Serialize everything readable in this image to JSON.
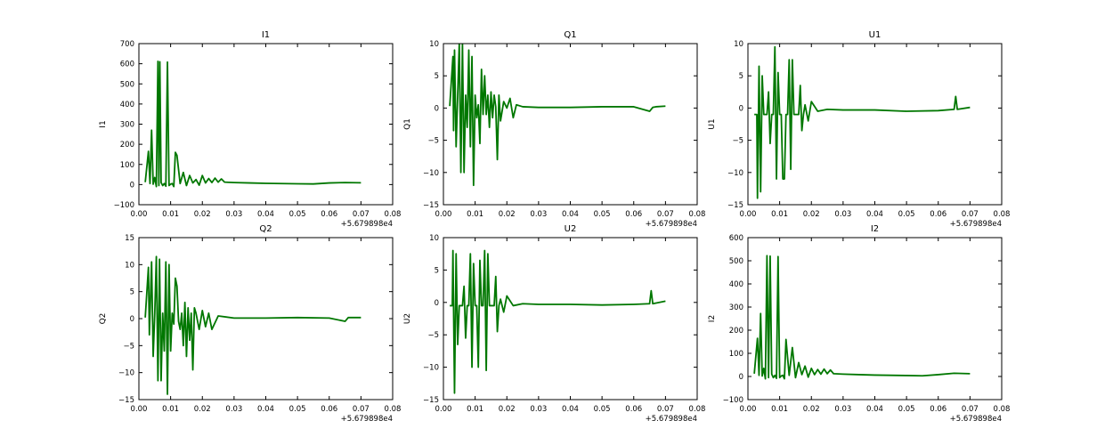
{
  "line_color": "#007700",
  "x_offset_text": "+5.679898e4",
  "chart_data": [
    {
      "type": "line",
      "title": "I1",
      "ylabel": "I1",
      "xlim": [
        0.0,
        0.08
      ],
      "ylim": [
        -100,
        700
      ],
      "xticks": [
        "0.00",
        "0.01",
        "0.02",
        "0.03",
        "0.04",
        "0.05",
        "0.06",
        "0.07",
        "0.08"
      ],
      "yticks": [
        "−100",
        "0",
        "100",
        "200",
        "300",
        "400",
        "500",
        "600",
        "700"
      ],
      "series": [
        {
          "x": [
            0.002,
            0.003,
            0.0035,
            0.004,
            0.0045,
            0.005,
            0.0055,
            0.006,
            0.0063,
            0.0066,
            0.007,
            0.0075,
            0.008,
            0.0085,
            0.009,
            0.0095,
            0.01,
            0.0105,
            0.011,
            0.0115,
            0.012,
            0.013,
            0.014,
            0.015,
            0.016,
            0.017,
            0.018,
            0.019,
            0.02,
            0.021,
            0.022,
            0.023,
            0.024,
            0.025,
            0.026,
            0.027,
            0.03,
            0.035,
            0.04,
            0.045,
            0.05,
            0.055,
            0.06,
            0.065,
            0.07
          ],
          "y": [
            12,
            165,
            5,
            270,
            2,
            35,
            -10,
            612,
            -5,
            610,
            10,
            -5,
            5,
            -8,
            608,
            -5,
            2,
            5,
            -10,
            160,
            145,
            5,
            60,
            -5,
            45,
            8,
            25,
            -3,
            45,
            8,
            30,
            10,
            32,
            12,
            28,
            12,
            10,
            8,
            6,
            5,
            4,
            3,
            8,
            10,
            9
          ]
        }
      ]
    },
    {
      "type": "line",
      "title": "Q1",
      "ylabel": "Q1",
      "xlim": [
        0.0,
        0.08
      ],
      "ylim": [
        -15,
        10
      ],
      "xticks": [
        "0.00",
        "0.01",
        "0.02",
        "0.03",
        "0.04",
        "0.05",
        "0.06",
        "0.07",
        "0.08"
      ],
      "yticks": [
        "−15",
        "−10",
        "−5",
        "0",
        "5",
        "10"
      ],
      "series": [
        {
          "x": [
            0.002,
            0.003,
            0.0032,
            0.0035,
            0.004,
            0.0045,
            0.005,
            0.0055,
            0.006,
            0.0065,
            0.007,
            0.0075,
            0.008,
            0.0085,
            0.009,
            0.0095,
            0.01,
            0.0105,
            0.011,
            0.0115,
            0.012,
            0.0125,
            0.013,
            0.0135,
            0.014,
            0.0145,
            0.015,
            0.0155,
            0.016,
            0.0165,
            0.017,
            0.0175,
            0.018,
            0.019,
            0.02,
            0.021,
            0.022,
            0.023,
            0.025,
            0.03,
            0.04,
            0.05,
            0.06,
            0.065,
            0.066,
            0.067,
            0.07
          ],
          "y": [
            0.3,
            8,
            -3.5,
            9,
            -6,
            2,
            10,
            -10,
            10,
            -10,
            2,
            -3,
            9,
            -6,
            8,
            -12,
            2,
            -1.5,
            0.5,
            -5.5,
            6,
            -1,
            5,
            -1,
            2,
            -3,
            2.5,
            -1.5,
            2,
            0.2,
            -8,
            2,
            -2,
            1,
            0,
            1.5,
            -1.5,
            0.5,
            0.2,
            0.1,
            0.1,
            0.2,
            0.2,
            -0.5,
            0.1,
            0.2,
            0.3
          ]
        }
      ]
    },
    {
      "type": "line",
      "title": "U1",
      "ylabel": "U1",
      "xlim": [
        0.0,
        0.08
      ],
      "ylim": [
        -15,
        10
      ],
      "xticks": [
        "0.00",
        "0.01",
        "0.02",
        "0.03",
        "0.04",
        "0.05",
        "0.06",
        "0.07",
        "0.08"
      ],
      "yticks": [
        "−15",
        "−10",
        "−5",
        "0",
        "5",
        "10"
      ],
      "series": [
        {
          "x": [
            0.002,
            0.0028,
            0.003,
            0.0035,
            0.004,
            0.0045,
            0.005,
            0.006,
            0.0065,
            0.007,
            0.0075,
            0.008,
            0.0085,
            0.009,
            0.0095,
            0.01,
            0.0105,
            0.011,
            0.0115,
            0.012,
            0.0125,
            0.013,
            0.0135,
            0.014,
            0.0145,
            0.015,
            0.016,
            0.0165,
            0.017,
            0.0175,
            0.018,
            0.019,
            0.02,
            0.022,
            0.025,
            0.03,
            0.04,
            0.05,
            0.06,
            0.065,
            0.0655,
            0.066,
            0.07
          ],
          "y": [
            -1,
            -1,
            -14,
            6.5,
            -13,
            5,
            -1,
            -1,
            2.5,
            -5.5,
            -1,
            -1,
            9.5,
            -11,
            5.5,
            -1,
            -1,
            -11,
            -11,
            -1,
            -1,
            7.5,
            -9.5,
            7.5,
            -1,
            -1,
            -1,
            3.5,
            -3.5,
            -1,
            0.5,
            -2,
            1,
            -0.5,
            -0.2,
            -0.3,
            -0.3,
            -0.5,
            -0.4,
            -0.2,
            1.8,
            -0.2,
            0.1
          ]
        }
      ]
    },
    {
      "type": "line",
      "title": "Q2",
      "ylabel": "Q2",
      "xlim": [
        0.0,
        0.08
      ],
      "ylim": [
        -15,
        15
      ],
      "xticks": [
        "0.00",
        "0.01",
        "0.02",
        "0.03",
        "0.04",
        "0.05",
        "0.06",
        "0.07",
        "0.08"
      ],
      "yticks": [
        "−15",
        "−10",
        "−5",
        "0",
        "5",
        "10",
        "15"
      ],
      "series": [
        {
          "x": [
            0.002,
            0.003,
            0.0033,
            0.004,
            0.0045,
            0.005,
            0.0055,
            0.006,
            0.0065,
            0.007,
            0.0075,
            0.008,
            0.0085,
            0.009,
            0.0095,
            0.01,
            0.0105,
            0.011,
            0.0115,
            0.012,
            0.0125,
            0.013,
            0.0135,
            0.014,
            0.0145,
            0.015,
            0.0155,
            0.016,
            0.0165,
            0.017,
            0.0175,
            0.018,
            0.019,
            0.02,
            0.021,
            0.022,
            0.023,
            0.025,
            0.03,
            0.04,
            0.05,
            0.06,
            0.065,
            0.066,
            0.07
          ],
          "y": [
            0.2,
            9.5,
            -3,
            10.5,
            -7,
            1,
            11.5,
            -11.5,
            11,
            -11.5,
            1,
            -6,
            10.5,
            -14,
            10,
            -6,
            1,
            -1,
            7.5,
            6,
            -0.5,
            -2,
            1,
            -5,
            3,
            -7,
            2,
            -4,
            1,
            -9.5,
            2,
            1,
            -2,
            1.5,
            -1.5,
            1,
            -2,
            0.5,
            0.1,
            0.1,
            0.2,
            0.1,
            -0.5,
            0.2,
            0.2
          ]
        }
      ]
    },
    {
      "type": "line",
      "title": "U2",
      "ylabel": "U2",
      "xlim": [
        0.0,
        0.08
      ],
      "ylim": [
        -15,
        10
      ],
      "xticks": [
        "0.00",
        "0.01",
        "0.02",
        "0.03",
        "0.04",
        "0.05",
        "0.06",
        "0.07",
        "0.08"
      ],
      "yticks": [
        "−15",
        "−10",
        "−5",
        "0",
        "5",
        "10"
      ],
      "series": [
        {
          "x": [
            0.002,
            0.0028,
            0.003,
            0.0035,
            0.004,
            0.0045,
            0.005,
            0.006,
            0.0065,
            0.007,
            0.0075,
            0.008,
            0.0085,
            0.009,
            0.0095,
            0.01,
            0.0105,
            0.011,
            0.0115,
            0.012,
            0.0125,
            0.013,
            0.0135,
            0.014,
            0.0145,
            0.015,
            0.016,
            0.0165,
            0.017,
            0.0175,
            0.018,
            0.019,
            0.02,
            0.022,
            0.025,
            0.03,
            0.04,
            0.05,
            0.06,
            0.065,
            0.0655,
            0.066,
            0.07
          ],
          "y": [
            -0.5,
            -0.5,
            8,
            -14,
            7.5,
            -6.5,
            -0.5,
            -0.5,
            2.5,
            -5.5,
            -0.5,
            -0.5,
            7.5,
            -10,
            6,
            -0.5,
            -0.5,
            -10,
            6.5,
            -0.5,
            -0.5,
            8,
            -10.5,
            7.5,
            -0.5,
            -0.5,
            -0.5,
            4,
            -4.5,
            -0.5,
            0.5,
            -1.5,
            1,
            -0.5,
            -0.2,
            -0.3,
            -0.3,
            -0.4,
            -0.3,
            -0.2,
            1.8,
            -0.2,
            0.2
          ]
        }
      ]
    },
    {
      "type": "line",
      "title": "I2",
      "ylabel": "I2",
      "xlim": [
        0.0,
        0.08
      ],
      "ylim": [
        -100,
        600
      ],
      "xticks": [
        "0.00",
        "0.01",
        "0.02",
        "0.03",
        "0.04",
        "0.05",
        "0.06",
        "0.07",
        "0.08"
      ],
      "yticks": [
        "−100",
        "0",
        "100",
        "200",
        "300",
        "400",
        "500",
        "600"
      ],
      "series": [
        {
          "x": [
            0.002,
            0.003,
            0.0035,
            0.004,
            0.0045,
            0.005,
            0.0055,
            0.006,
            0.0065,
            0.007,
            0.0075,
            0.008,
            0.0085,
            0.009,
            0.0095,
            0.01,
            0.0105,
            0.011,
            0.0115,
            0.012,
            0.013,
            0.014,
            0.015,
            0.016,
            0.017,
            0.018,
            0.019,
            0.02,
            0.021,
            0.022,
            0.023,
            0.024,
            0.025,
            0.026,
            0.027,
            0.03,
            0.035,
            0.04,
            0.045,
            0.05,
            0.055,
            0.06,
            0.065,
            0.07
          ],
          "y": [
            12,
            165,
            5,
            272,
            2,
            35,
            -10,
            522,
            -5,
            520,
            10,
            -5,
            5,
            -8,
            518,
            -5,
            2,
            5,
            -10,
            160,
            5,
            125,
            -5,
            60,
            8,
            45,
            -3,
            35,
            8,
            30,
            10,
            32,
            12,
            28,
            12,
            10,
            8,
            6,
            5,
            4,
            3,
            8,
            14,
            12
          ]
        }
      ]
    }
  ]
}
